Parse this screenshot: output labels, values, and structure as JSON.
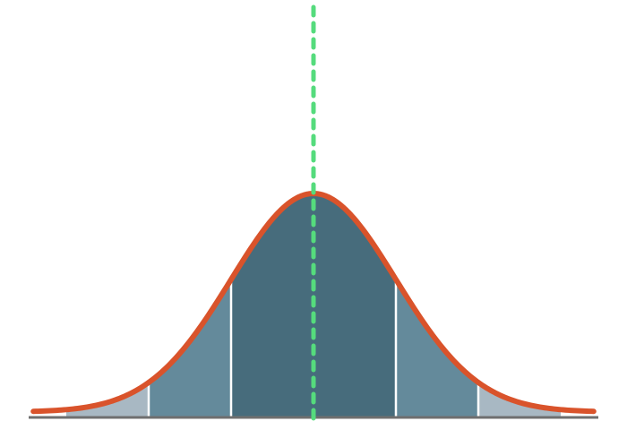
{
  "chart_data": {
    "type": "area",
    "distribution": "normal",
    "mean": 0,
    "std": 1,
    "x_range": [
      -3.4,
      3.4
    ],
    "bands": [
      {
        "from": -3,
        "to": -2,
        "color": "#a8b8c3"
      },
      {
        "from": -2,
        "to": -1,
        "color": "#648a9b"
      },
      {
        "from": -1,
        "to": 1,
        "color": "#476c7c"
      },
      {
        "from": 1,
        "to": 2,
        "color": "#648a9b"
      },
      {
        "from": 2,
        "to": 3,
        "color": "#a8b8c3"
      }
    ],
    "band_boundaries": [
      -2,
      -1,
      1,
      2
    ],
    "mean_line": {
      "x": 0,
      "color": "#55db7d",
      "style": "dashed"
    },
    "curve_color": "#d9532b",
    "axis_color": "#6f6f6f",
    "grid": false,
    "title": "",
    "xlabel": "",
    "ylabel": ""
  }
}
